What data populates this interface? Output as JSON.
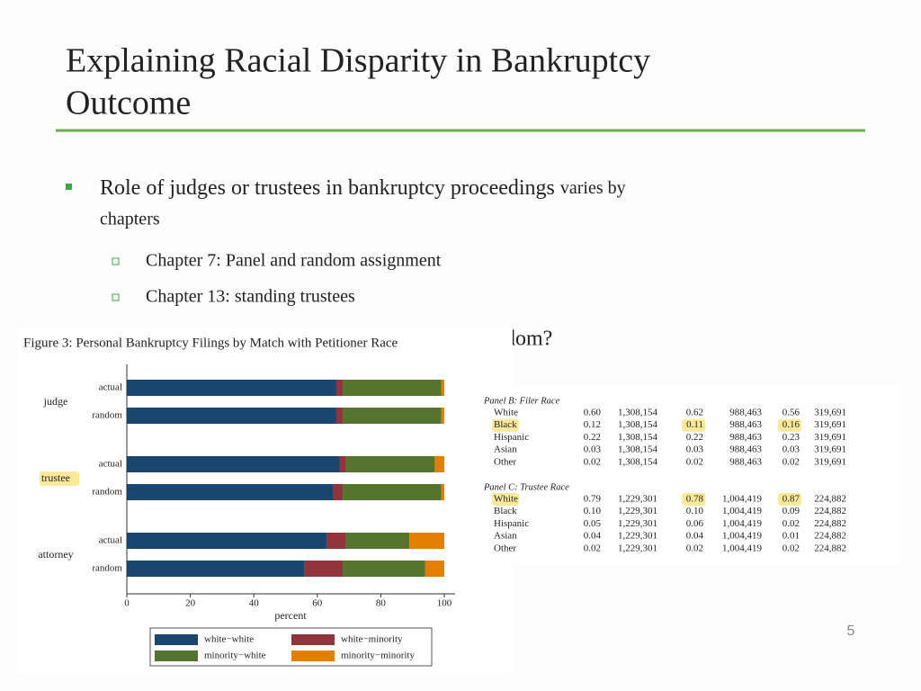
{
  "slide": {
    "title_lines": [
      "Explaining Racial Disparity in Bankruptcy",
      "Outcome"
    ],
    "bullet": {
      "text": "Role of judges or trustees in bankruptcy proceedings",
      "text_small": "varies by",
      "text_line2": "chapters"
    },
    "sub_bullets": [
      "Chapter 7: Panel and random assignment",
      "Chapter 13: standing trustees"
    ],
    "hidden_bullet_tail": "dom?",
    "page_number": "5"
  },
  "chart_data": {
    "type": "stacked-barh",
    "title": "Figure 3: Personal Bankruptcy Filings by Match with Petitioner Race",
    "groups": [
      "judge",
      "trustee",
      "attorney"
    ],
    "categories": [
      "actual",
      "random",
      "actual",
      "random",
      "actual",
      "random"
    ],
    "series": [
      {
        "name": "white−white",
        "color": "#1a476f",
        "values": [
          66,
          66,
          67,
          65,
          63,
          56
        ]
      },
      {
        "name": "white−minority",
        "color": "#90353b",
        "values": [
          2,
          2,
          2,
          3,
          6,
          12
        ]
      },
      {
        "name": "minority−white",
        "color": "#55752f",
        "values": [
          31,
          31,
          28,
          31,
          20,
          26
        ]
      },
      {
        "name": "minority−minority",
        "color": "#e37e00",
        "values": [
          1,
          1,
          3,
          1,
          11,
          6
        ]
      }
    ],
    "xlabel": "percent",
    "xlim": [
      0,
      100
    ],
    "xticks": [
      0,
      20,
      40,
      60,
      80,
      100
    ]
  },
  "table": {
    "panels": [
      {
        "title": "Panel B: Filer Race",
        "rows": [
          [
            "White",
            "0.60",
            "1,308,154",
            "0.62",
            "988,463",
            "0.56",
            "319,691"
          ],
          [
            "Black",
            "0.12",
            "1,308,154",
            "0.11",
            "988,463",
            "0.16",
            "319,691"
          ],
          [
            "Hispanic",
            "0.22",
            "1,308,154",
            "0.22",
            "988,463",
            "0.23",
            "319,691"
          ],
          [
            "Asian",
            "0.03",
            "1,308,154",
            "0.03",
            "988,463",
            "0.03",
            "319,691"
          ],
          [
            "Other",
            "0.02",
            "1,308,154",
            "0.02",
            "988,463",
            "0.02",
            "319,691"
          ]
        ]
      },
      {
        "title": "Panel C: Trustee Race",
        "rows": [
          [
            "White",
            "0.79",
            "1,229,301",
            "0.78",
            "1,004,419",
            "0.87",
            "224,882"
          ],
          [
            "Black",
            "0.10",
            "1,229,301",
            "0.10",
            "1,004,419",
            "0.09",
            "224,882"
          ],
          [
            "Hispanic",
            "0.05",
            "1,229,301",
            "0.06",
            "1,004,419",
            "0.02",
            "224,882"
          ],
          [
            "Asian",
            "0.04",
            "1,229,301",
            "0.04",
            "1,004,419",
            "0.01",
            "224,882"
          ],
          [
            "Other",
            "0.02",
            "1,229,301",
            "0.02",
            "1,004,419",
            "0.02",
            "224,882"
          ]
        ]
      }
    ]
  }
}
